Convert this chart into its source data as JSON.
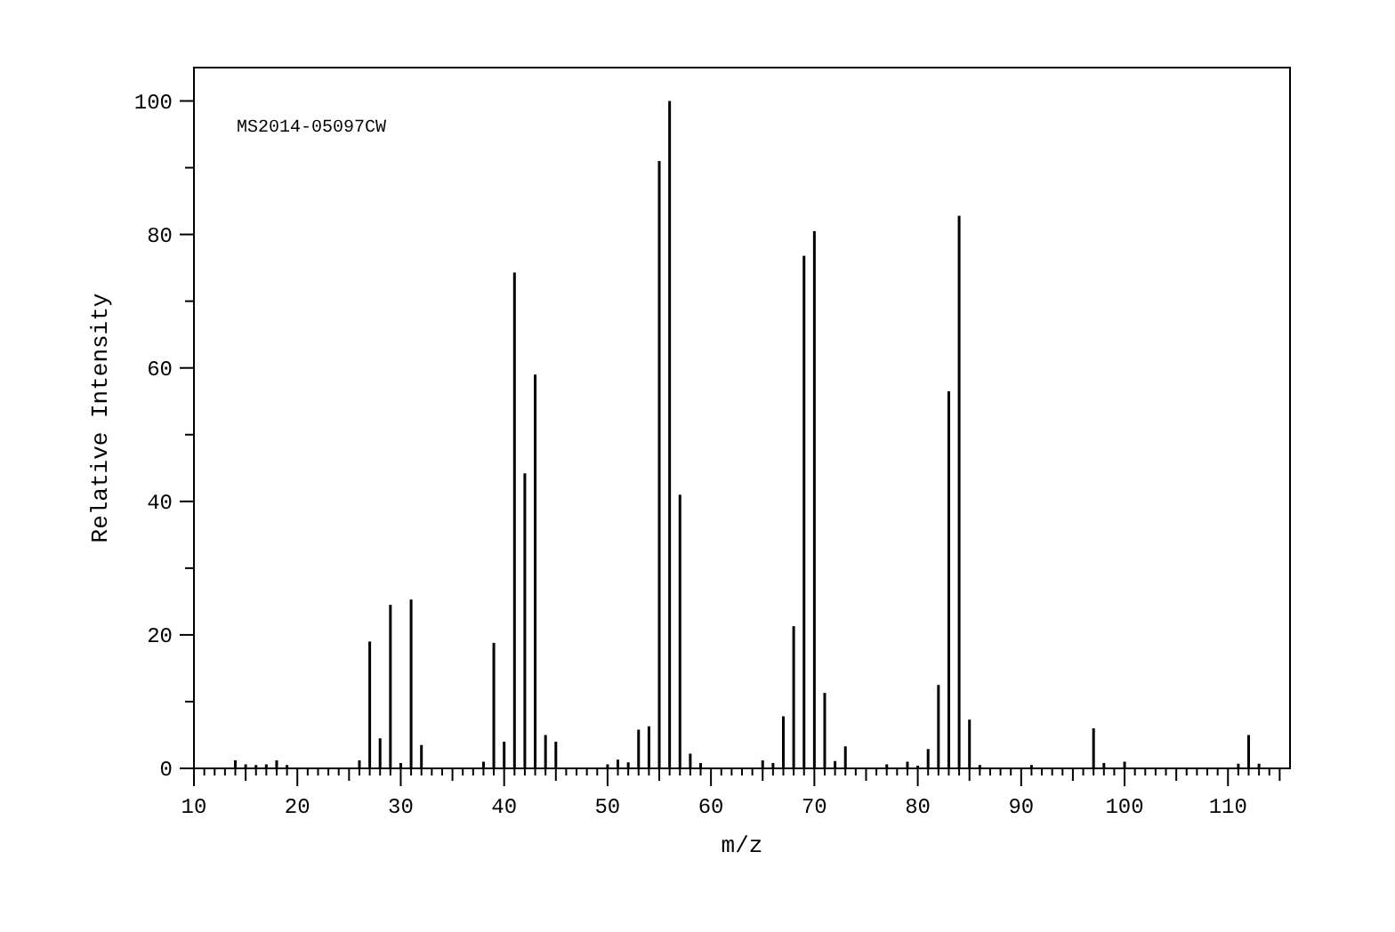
{
  "chart_data": {
    "type": "bar",
    "xlabel": "m/z",
    "ylabel": "Relative Intensity",
    "annotations": [
      "MS2014-05097CW"
    ],
    "x": [
      14,
      15,
      16,
      17,
      18,
      19,
      26,
      27,
      28,
      29,
      30,
      31,
      32,
      38,
      39,
      40,
      41,
      42,
      43,
      44,
      45,
      50,
      51,
      52,
      53,
      54,
      55,
      56,
      57,
      58,
      59,
      65,
      66,
      67,
      68,
      69,
      70,
      71,
      72,
      73,
      77,
      79,
      80,
      81,
      82,
      83,
      84,
      85,
      86,
      91,
      97,
      98,
      100,
      111,
      112,
      113
    ],
    "values": [
      1.2,
      0.6,
      0.5,
      0.6,
      1.2,
      0.5,
      1.2,
      19,
      4.5,
      24.5,
      0.8,
      25.3,
      3.5,
      1,
      18.8,
      4,
      74.3,
      44.2,
      59,
      5,
      4,
      0.6,
      1.3,
      0.9,
      5.8,
      6.3,
      91,
      100,
      41,
      2.2,
      0.8,
      1.2,
      0.8,
      7.8,
      21.3,
      76.8,
      80.5,
      11.3,
      1.1,
      3.3,
      0.6,
      1,
      0.4,
      2.9,
      12.5,
      56.5,
      82.8,
      7.3,
      0.5,
      0.5,
      6,
      0.8,
      1,
      0.7,
      5,
      0.7
    ],
    "color": "#000000",
    "xlim": [
      10,
      116
    ],
    "xticks": [
      10,
      {
        "value": 11,
        "label": null
      },
      {
        "value": 12,
        "label": null
      },
      {
        "value": 13,
        "label": null
      },
      {
        "value": 14,
        "label": null
      },
      {
        "value": 15,
        "label": null
      },
      {
        "value": 16,
        "label": null
      },
      {
        "value": 17,
        "label": null
      },
      {
        "value": 18,
        "label": null
      },
      {
        "value": 19,
        "label": null
      },
      20,
      {
        "value": 21,
        "label": null
      },
      {
        "value": 22,
        "label": null
      },
      {
        "value": 23,
        "label": null
      },
      {
        "value": 24,
        "label": null
      },
      {
        "value": 25,
        "label": null
      },
      {
        "value": 26,
        "label": null
      },
      {
        "value": 27,
        "label": null
      },
      {
        "value": 28,
        "label": null
      },
      {
        "value": 29,
        "label": null
      },
      30,
      {
        "value": 31,
        "label": null
      },
      {
        "value": 32,
        "label": null
      },
      {
        "value": 33,
        "label": null
      },
      {
        "value": 34,
        "label": null
      },
      {
        "value": 35,
        "label": null
      },
      {
        "value": 36,
        "label": null
      },
      {
        "value": 37,
        "label": null
      },
      {
        "value": 38,
        "label": null
      },
      {
        "value": 39,
        "label": null
      },
      40,
      {
        "value": 41,
        "label": null
      },
      {
        "value": 42,
        "label": null
      },
      {
        "value": 43,
        "label": null
      },
      {
        "value": 44,
        "label": null
      },
      {
        "value": 45,
        "label": null
      },
      {
        "value": 46,
        "label": null
      },
      {
        "value": 47,
        "label": null
      },
      {
        "value": 48,
        "label": null
      },
      {
        "value": 49,
        "label": null
      },
      50,
      {
        "value": 51,
        "label": null
      },
      {
        "value": 52,
        "label": null
      },
      {
        "value": 53,
        "label": null
      },
      {
        "value": 54,
        "label": null
      },
      {
        "value": 55,
        "label": null
      },
      {
        "value": 56,
        "label": null
      },
      {
        "value": 57,
        "label": null
      },
      {
        "value": 58,
        "label": null
      },
      {
        "value": 59,
        "label": null
      },
      60,
      {
        "value": 61,
        "label": null
      },
      {
        "value": 62,
        "label": null
      },
      {
        "value": 63,
        "label": null
      },
      {
        "value": 64,
        "label": null
      },
      {
        "value": 65,
        "label": null
      },
      {
        "value": 66,
        "label": null
      },
      {
        "value": 67,
        "label": null
      },
      {
        "value": 68,
        "label": null
      },
      {
        "value": 69,
        "label": null
      },
      70,
      {
        "value": 71,
        "label": null
      },
      {
        "value": 72,
        "label": null
      },
      {
        "value": 73,
        "label": null
      },
      {
        "value": 74,
        "label": null
      },
      {
        "value": 75,
        "label": null
      },
      {
        "value": 76,
        "label": null
      },
      {
        "value": 77,
        "label": null
      },
      {
        "value": 78,
        "label": null
      },
      {
        "value": 79,
        "label": null
      },
      80,
      {
        "value": 81,
        "label": null
      },
      {
        "value": 82,
        "label": null
      },
      {
        "value": 83,
        "label": null
      },
      {
        "value": 84,
        "label": null
      },
      {
        "value": 85,
        "label": null
      },
      {
        "value": 86,
        "label": null
      },
      {
        "value": 87,
        "label": null
      },
      {
        "value": 88,
        "label": null
      },
      {
        "value": 89,
        "label": null
      },
      90,
      {
        "value": 91,
        "label": null
      },
      {
        "value": 92,
        "label": null
      },
      {
        "value": 93,
        "label": null
      },
      {
        "value": 94,
        "label": null
      },
      {
        "value": 95,
        "label": null
      },
      {
        "value": 96,
        "label": null
      },
      {
        "value": 97,
        "label": null
      },
      {
        "value": 98,
        "label": null
      },
      {
        "value": 99,
        "label": null
      },
      100,
      {
        "value": 101,
        "label": null
      },
      {
        "value": 102,
        "label": null
      },
      {
        "value": 103,
        "label": null
      },
      {
        "value": 104,
        "label": null
      },
      {
        "value": 105,
        "label": null
      },
      {
        "value": 106,
        "label": null
      },
      {
        "value": 107,
        "label": null
      },
      {
        "value": 108,
        "label": null
      },
      {
        "value": 109,
        "label": null
      },
      110,
      {
        "value": 111,
        "label": null
      },
      {
        "value": 112,
        "label": null
      },
      {
        "value": 113,
        "label": null
      },
      {
        "value": 114,
        "label": null
      },
      {
        "value": 115,
        "label": null
      }
    ],
    "ylim": [
      0,
      105
    ],
    "yticks": [
      0,
      {
        "value": 10,
        "label": null
      },
      20,
      {
        "value": 30,
        "label": null
      },
      40,
      {
        "value": 50,
        "label": null
      },
      60,
      {
        "value": 70,
        "label": null
      },
      80,
      {
        "value": 90,
        "label": null
      },
      100
    ]
  }
}
